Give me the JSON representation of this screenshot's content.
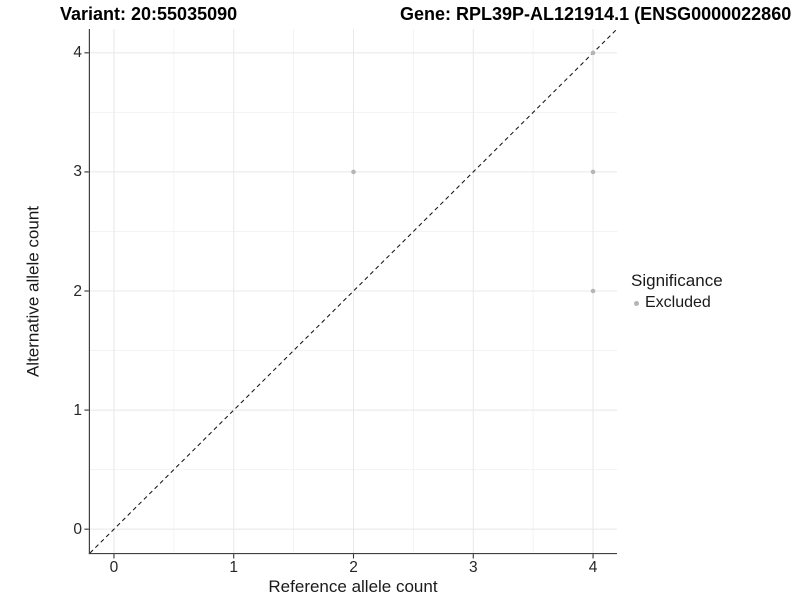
{
  "chart_data": {
    "type": "scatter",
    "title_left": "Variant: 20:55035090",
    "title_right": "Gene: RPL39P-AL121914.1 (ENSG0000022860",
    "xlabel": "Reference allele count",
    "ylabel": "Alternative allele count",
    "xlim": [
      -0.2,
      4.2
    ],
    "ylim": [
      -0.2,
      4.2
    ],
    "x_ticks": [
      "0",
      "1",
      "2",
      "3",
      "4"
    ],
    "y_ticks": [
      "0",
      "1",
      "2",
      "3",
      "4"
    ],
    "x_minor": [
      0.5,
      1.5,
      2.5,
      3.5
    ],
    "y_minor": [
      0.5,
      1.5,
      2.5,
      3.5
    ],
    "grid": true,
    "legend": {
      "position": "right",
      "title": "Significance",
      "items": [
        {
          "label": "Excluded",
          "color": "#b5b5b5"
        }
      ]
    },
    "series": [
      {
        "name": "Excluded",
        "color": "#b5b5b5",
        "point_radius": 2.3,
        "points": [
          [
            2,
            3
          ],
          [
            4,
            2
          ],
          [
            4,
            3
          ],
          [
            4,
            4
          ]
        ]
      }
    ],
    "reference_line": {
      "slope": 1,
      "intercept": 0,
      "style": "dashed",
      "color": "#141414"
    },
    "colors": {
      "grid_major": "#e8e8e8",
      "grid_minor": "#f3f3f3",
      "axis_line": "#404040",
      "tick_mark": "#333333",
      "text": "#1a1a1a"
    }
  }
}
